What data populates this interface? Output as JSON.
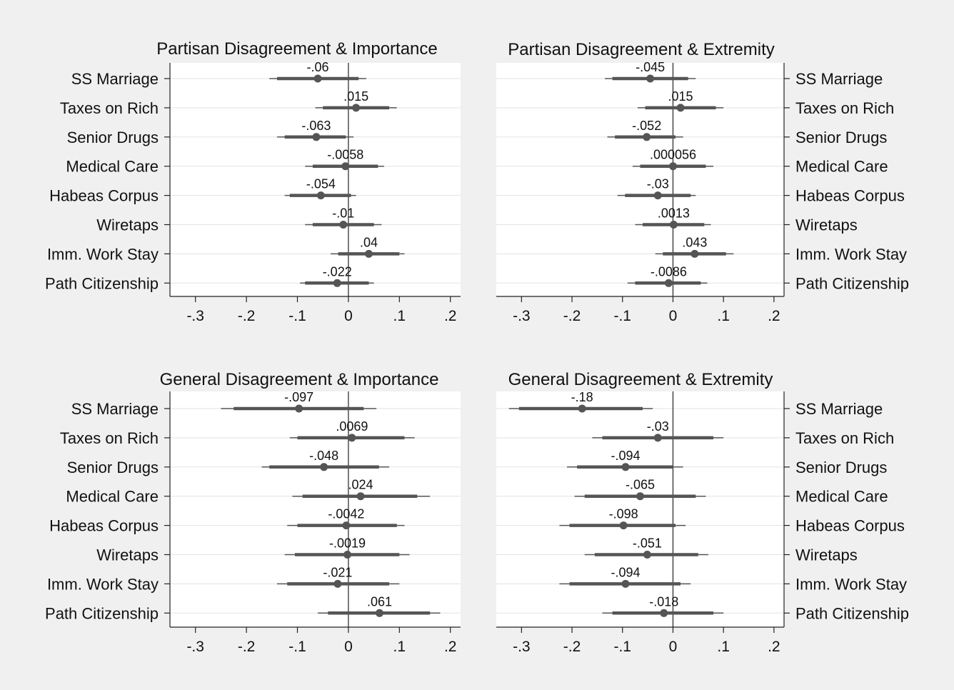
{
  "chart_data": [
    {
      "type": "scatter",
      "title": "Partisan Disagreement & Importance",
      "categories": [
        "SS Marriage",
        "Taxes on Rich",
        "Senior Drugs",
        "Medical Care",
        "Habeas Corpus",
        "Wiretaps",
        "Imm. Work Stay",
        "Path Citizenship"
      ],
      "labels": [
        "-.06",
        ".015",
        "-.063",
        "-.0058",
        "-.054",
        "-.01",
        ".04",
        "-.022"
      ],
      "values": [
        -0.06,
        0.015,
        -0.063,
        -0.0058,
        -0.054,
        -0.01,
        0.04,
        -0.022
      ],
      "ci_inner": [
        [
          -0.14,
          0.02
        ],
        [
          -0.05,
          0.08
        ],
        [
          -0.125,
          -0.005
        ],
        [
          -0.07,
          0.058
        ],
        [
          -0.115,
          0.005
        ],
        [
          -0.07,
          0.05
        ],
        [
          -0.02,
          0.1
        ],
        [
          -0.085,
          0.04
        ]
      ],
      "ci_outer": [
        [
          -0.155,
          0.035
        ],
        [
          -0.065,
          0.095
        ],
        [
          -0.14,
          0.01
        ],
        [
          -0.085,
          0.07
        ],
        [
          -0.125,
          0.015
        ],
        [
          -0.085,
          0.065
        ],
        [
          -0.035,
          0.11
        ],
        [
          -0.095,
          0.05
        ]
      ],
      "xlim": [
        -0.35,
        0.22
      ],
      "xticks": [
        -0.3,
        -0.2,
        -0.1,
        0,
        0.1,
        0.2
      ],
      "xtick_labels": [
        "-.3",
        "-.2",
        "-.1",
        "0",
        ".1",
        ".2"
      ],
      "label_side": "left",
      "zero_line": true
    },
    {
      "type": "scatter",
      "title": "Partisan Disagreement & Extremity",
      "categories": [
        "SS Marriage",
        "Taxes on Rich",
        "Senior Drugs",
        "Medical Care",
        "Habeas Corpus",
        "Wiretaps",
        "Imm. Work Stay",
        "Path Citizenship"
      ],
      "labels": [
        "-.045",
        ".015",
        "-.052",
        ".000056",
        "-.03",
        ".0013",
        ".043",
        "-.0086"
      ],
      "values": [
        -0.045,
        0.015,
        -0.052,
        5.6e-05,
        -0.03,
        0.0013,
        0.043,
        -0.0086
      ],
      "ci_inner": [
        [
          -0.12,
          0.03
        ],
        [
          -0.055,
          0.085
        ],
        [
          -0.115,
          0.005
        ],
        [
          -0.065,
          0.065
        ],
        [
          -0.095,
          0.035
        ],
        [
          -0.06,
          0.062
        ],
        [
          -0.02,
          0.105
        ],
        [
          -0.075,
          0.055
        ]
      ],
      "ci_outer": [
        [
          -0.135,
          0.045
        ],
        [
          -0.07,
          0.1
        ],
        [
          -0.13,
          0.02
        ],
        [
          -0.08,
          0.08
        ],
        [
          -0.11,
          0.045
        ],
        [
          -0.075,
          0.075
        ],
        [
          -0.035,
          0.12
        ],
        [
          -0.09,
          0.068
        ]
      ],
      "xlim": [
        -0.35,
        0.22
      ],
      "xticks": [
        -0.3,
        -0.2,
        -0.1,
        0,
        0.1,
        0.2
      ],
      "xtick_labels": [
        "-.3",
        "-.2",
        "-.1",
        "0",
        ".1",
        ".2"
      ],
      "label_side": "right",
      "zero_line": true
    },
    {
      "type": "scatter",
      "title": "General Disagreement & Importance",
      "categories": [
        "SS Marriage",
        "Taxes on Rich",
        "Senior Drugs",
        "Medical Care",
        "Habeas Corpus",
        "Wiretaps",
        "Imm. Work Stay",
        "Path Citizenship"
      ],
      "labels": [
        "-.097",
        ".0069",
        "-.048",
        ".024",
        "-.0042",
        "-.0019",
        "-.021",
        ".061"
      ],
      "values": [
        -0.097,
        0.0069,
        -0.048,
        0.024,
        -0.0042,
        -0.0019,
        -0.021,
        0.061
      ],
      "ci_inner": [
        [
          -0.225,
          0.03
        ],
        [
          -0.1,
          0.11
        ],
        [
          -0.155,
          0.06
        ],
        [
          -0.09,
          0.135
        ],
        [
          -0.1,
          0.095
        ],
        [
          -0.105,
          0.1
        ],
        [
          -0.12,
          0.08
        ],
        [
          -0.04,
          0.16
        ]
      ],
      "ci_outer": [
        [
          -0.25,
          0.055
        ],
        [
          -0.115,
          0.13
        ],
        [
          -0.17,
          0.08
        ],
        [
          -0.11,
          0.16
        ],
        [
          -0.12,
          0.11
        ],
        [
          -0.125,
          0.12
        ],
        [
          -0.14,
          0.1
        ],
        [
          -0.06,
          0.18
        ]
      ],
      "xlim": [
        -0.35,
        0.22
      ],
      "xticks": [
        -0.3,
        -0.2,
        -0.1,
        0,
        0.1,
        0.2
      ],
      "xtick_labels": [
        "-.3",
        "-.2",
        "-.1",
        "0",
        ".1",
        ".2"
      ],
      "label_side": "left",
      "zero_line": true
    },
    {
      "type": "scatter",
      "title": "General Disagreement & Extremity",
      "categories": [
        "SS Marriage",
        "Taxes on Rich",
        "Senior Drugs",
        "Medical Care",
        "Habeas Corpus",
        "Wiretaps",
        "Imm. Work Stay",
        "Path Citizenship"
      ],
      "labels": [
        "-.18",
        "-.03",
        "-.094",
        "-.065",
        "-.098",
        "-.051",
        "-.094",
        "-.018"
      ],
      "values": [
        -0.18,
        -0.03,
        -0.094,
        -0.065,
        -0.098,
        -0.051,
        -0.094,
        -0.018
      ],
      "ci_inner": [
        [
          -0.305,
          -0.06
        ],
        [
          -0.14,
          0.08
        ],
        [
          -0.19,
          0.0
        ],
        [
          -0.175,
          0.045
        ],
        [
          -0.205,
          0.005
        ],
        [
          -0.155,
          0.05
        ],
        [
          -0.205,
          0.015
        ],
        [
          -0.12,
          0.08
        ]
      ],
      "ci_outer": [
        [
          -0.325,
          -0.04
        ],
        [
          -0.16,
          0.1
        ],
        [
          -0.21,
          0.02
        ],
        [
          -0.195,
          0.065
        ],
        [
          -0.225,
          0.025
        ],
        [
          -0.175,
          0.07
        ],
        [
          -0.225,
          0.035
        ],
        [
          -0.14,
          0.1
        ]
      ],
      "xlim": [
        -0.35,
        0.22
      ],
      "xticks": [
        -0.3,
        -0.2,
        -0.1,
        0,
        0.1,
        0.2
      ],
      "xtick_labels": [
        "-.3",
        "-.2",
        "-.1",
        "0",
        ".1",
        ".2"
      ],
      "label_side": "right",
      "zero_line": true
    }
  ],
  "colors": {
    "background": "#f0f0f0",
    "plot_area": "#ffffff",
    "marker": "#555555",
    "gridline": "#e3e3e3",
    "axis": "#222222"
  }
}
